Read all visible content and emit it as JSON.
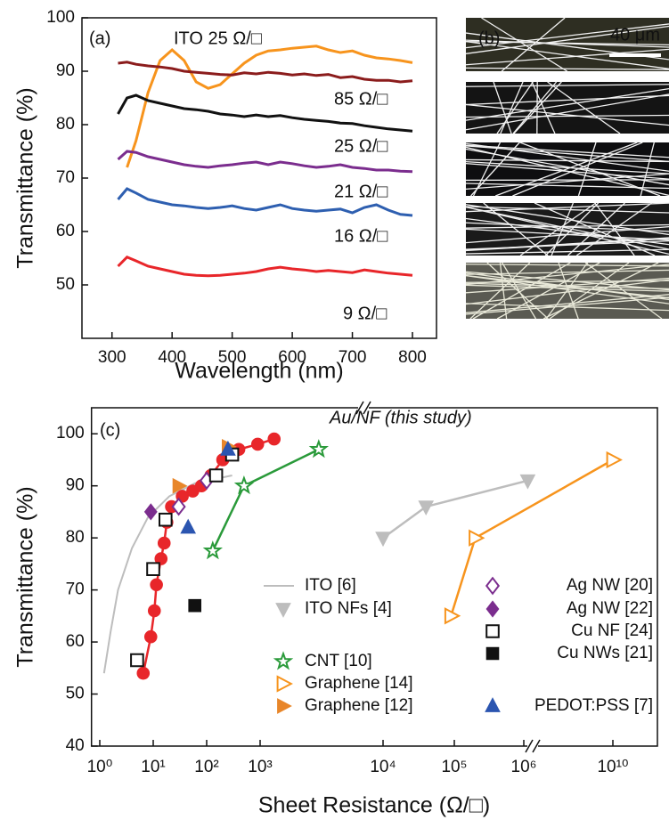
{
  "chart_data": [
    {
      "type": "line",
      "panel_label": "(a)",
      "x_label": "Wavelength (nm)",
      "y_label": "Transmittance (%)",
      "xlim": [
        250,
        840
      ],
      "ylim": [
        40,
        100
      ],
      "xticks": [
        300,
        400,
        500,
        600,
        700,
        800
      ],
      "yticks": [
        50,
        60,
        70,
        80,
        90,
        100
      ],
      "x": [
        310,
        325,
        340,
        360,
        380,
        400,
        420,
        440,
        460,
        480,
        500,
        520,
        540,
        560,
        580,
        600,
        620,
        640,
        660,
        680,
        700,
        720,
        740,
        760,
        780,
        800
      ],
      "series": [
        {
          "color": "#f7941d",
          "values": [
            null,
            72,
            77,
            86,
            92,
            94,
            92,
            88,
            86.8,
            87.5,
            89.5,
            91.5,
            93,
            93.8,
            94,
            94.3,
            94.5,
            94.7,
            94,
            93.5,
            93.8,
            93,
            92.5,
            92.3,
            92,
            91.6
          ]
        },
        {
          "color": "#8b1c1c",
          "values": [
            91.5,
            91.7,
            91.3,
            91,
            90.8,
            90.5,
            90,
            89.8,
            89.6,
            89.4,
            89.3,
            89.7,
            89.5,
            89.8,
            89.6,
            89.3,
            89.5,
            89.2,
            89.4,
            88.8,
            89,
            88.5,
            88.3,
            88.3,
            88,
            88.2
          ]
        },
        {
          "color": "#111111",
          "values": [
            82,
            85,
            85.5,
            84.5,
            84,
            83.5,
            83,
            82.8,
            82.5,
            82,
            81.8,
            81.5,
            81.8,
            81.5,
            81.7,
            81.3,
            81,
            80.8,
            80.6,
            80.3,
            80.2,
            79.8,
            79.5,
            79.2,
            79,
            78.8
          ]
        },
        {
          "color": "#7b2d8e",
          "values": [
            73.5,
            75,
            74.8,
            74,
            73.5,
            73,
            72.5,
            72.2,
            72,
            72.3,
            72.5,
            72.8,
            73,
            72.5,
            73,
            72.7,
            72.3,
            72,
            72.2,
            72.5,
            72,
            71.8,
            71.5,
            71.5,
            71.3,
            71.2
          ]
        },
        {
          "color": "#2e5fb0",
          "values": [
            66,
            68,
            67.2,
            66,
            65.5,
            65,
            64.8,
            64.5,
            64.3,
            64.5,
            64.8,
            64.3,
            64,
            64.5,
            65,
            64.3,
            64,
            63.8,
            64,
            64.2,
            63.5,
            64.5,
            65,
            64,
            63.2,
            63
          ]
        },
        {
          "color": "#e8262a",
          "values": [
            53.5,
            55.2,
            54.5,
            53.5,
            53,
            52.5,
            52,
            51.8,
            51.7,
            51.8,
            52,
            52.2,
            52.5,
            53,
            53.3,
            53,
            52.8,
            52.5,
            52.7,
            52.5,
            52.3,
            52.8,
            52.5,
            52.2,
            52,
            51.8
          ]
        }
      ],
      "annotations": [
        {
          "text": "ITO 25 Ω/□",
          "color": "#f7941d"
        },
        {
          "text": "85 Ω/□",
          "color": "#111111"
        },
        {
          "text": "25 Ω/□",
          "color": "#8b1c1c"
        },
        {
          "text": "21 Ω/□",
          "color": "#e8262a"
        },
        {
          "text": "16 Ω/□",
          "color": "#2e5fb0"
        },
        {
          "text": "9 Ω/□",
          "color": "#7b2d8e"
        }
      ]
    },
    {
      "type": "scatter",
      "panel_label": "(c)",
      "xscale": "log",
      "x_label": "Sheet Resistance (Ω/□)",
      "y_label": "Transmittance (%)",
      "xlim": [
        0.7,
        1000000000000
      ],
      "ylim": [
        40,
        105
      ],
      "xticks": [
        {
          "value": 1,
          "label": "10⁰"
        },
        {
          "value": 10,
          "label": "10¹"
        },
        {
          "value": 100,
          "label": "10²"
        },
        {
          "value": 1000,
          "label": "10³"
        },
        {
          "value": 10000,
          "label": "10⁴"
        },
        {
          "value": 100000,
          "label": "10⁵"
        },
        {
          "value": 1000000,
          "label": "10⁶"
        },
        {
          "value": 10000000000,
          "label": "10¹⁰"
        }
      ],
      "yticks": [
        40,
        50,
        60,
        70,
        80,
        90,
        100
      ],
      "series": [
        {
          "name": "ITO [6]",
          "color": "#bdbdbd",
          "marker": "none",
          "line": true,
          "x": [
            1.2,
            1.6,
            2.2,
            4,
            8,
            20,
            60,
            300
          ],
          "values": [
            54,
            62,
            70,
            78,
            84,
            88,
            90.5,
            92
          ]
        },
        {
          "name": "ITO NFs [4]",
          "color": "#bdbdbd",
          "marker": "triangle-down",
          "line": true,
          "x": [
            10000,
            40000,
            1500000
          ],
          "values": [
            80,
            86,
            91
          ]
        },
        {
          "name": "Au/NF (this study)",
          "color": "#e8262a",
          "marker": "circle",
          "line": true,
          "x": [
            6.5,
            9,
            10.5,
            11.5,
            14,
            16,
            18,
            22,
            35,
            55,
            80,
            120,
            200,
            400,
            900,
            1300
          ],
          "values": [
            54,
            61,
            66,
            71,
            76,
            79,
            83,
            86,
            88,
            89,
            90,
            92,
            95,
            97,
            98,
            99
          ]
        },
        {
          "name": "CNT [10]",
          "color": "#2a9a3a",
          "marker": "star-open",
          "line": true,
          "x": [
            130,
            500,
            3000
          ],
          "values": [
            77.5,
            90,
            97
          ]
        },
        {
          "name": "Graphene [14]",
          "color": "#f7941d",
          "marker": "triangle-right-open",
          "line": true,
          "x": [
            90000,
            200000,
            10000000000
          ],
          "values": [
            65,
            80,
            95
          ]
        },
        {
          "name": "Graphene [12]",
          "color": "#e8862a",
          "marker": "triangle-right",
          "line": false,
          "x": [
            30,
            250
          ],
          "values": [
            90,
            97.5
          ]
        },
        {
          "name": "Ag NW [20]",
          "color": "#7b2d8e",
          "marker": "diamond-open",
          "line": false,
          "x": [
            30,
            100
          ],
          "values": [
            86,
            91
          ]
        },
        {
          "name": "Ag NW [22]",
          "color": "#7b2d8e",
          "marker": "diamond",
          "line": false,
          "x": [
            9
          ],
          "values": [
            85
          ]
        },
        {
          "name": "Cu NF [24]",
          "color": "#111111",
          "marker": "square-open",
          "line": false,
          "x": [
            5,
            10,
            17,
            150,
            300
          ],
          "values": [
            56.5,
            74,
            83.5,
            92,
            96
          ]
        },
        {
          "name": "Cu NWs [21]",
          "color": "#111111",
          "marker": "square",
          "line": false,
          "x": [
            60
          ],
          "values": [
            67
          ]
        },
        {
          "name": "PEDOT:PSS [7]",
          "color": "#2b55b0",
          "marker": "triangle-up",
          "line": false,
          "x": [
            45,
            250
          ],
          "values": [
            82,
            97
          ]
        }
      ]
    }
  ],
  "micrographs": {
    "panel_label": "(b)",
    "scale_bar": "40 μm"
  }
}
